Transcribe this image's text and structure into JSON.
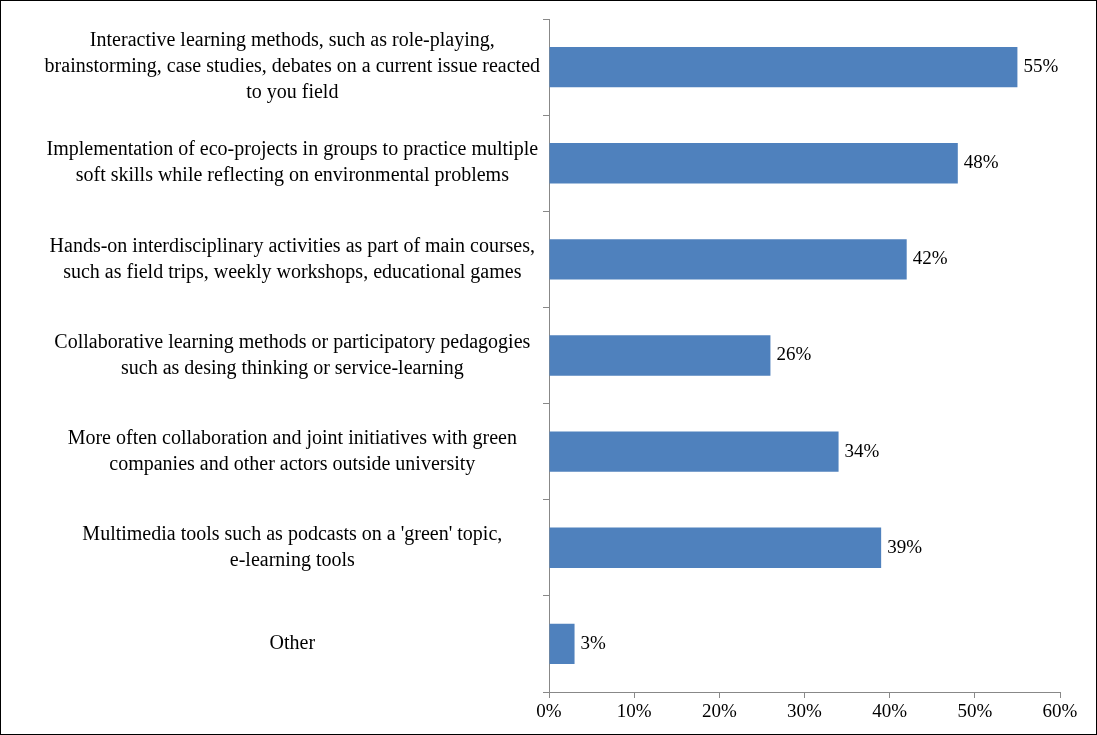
{
  "chart_data": {
    "type": "bar",
    "orientation": "horizontal",
    "categories": [
      "Interactive learning methods, such as role-playing, brainstorming, case studies, debates on a current issue reacted to you field",
      "Implementation of eco-projects in groups to practice multiple soft skills while reflecting on environmental problems",
      "Hands-on interdisciplinary activities as part of main courses, such as field trips, weekly workshops, educational games",
      "Collaborative learning methods or participatory pedagogies such as desing thinking or service-learning",
      "More often collaboration and joint initiatives with green companies and other actors outside university",
      "Multimedia tools such as podcasts on a 'green' topic, e-learning tools",
      "Other"
    ],
    "values": [
      55,
      48,
      42,
      26,
      34,
      39,
      3
    ],
    "value_labels": [
      "55%",
      "48%",
      "42%",
      "26%",
      "34%",
      "39%",
      "3%"
    ],
    "color": "#4f81bd",
    "xlim": [
      0,
      60
    ],
    "xticks": [
      {
        "value": 0,
        "label": "0%"
      },
      {
        "value": 10,
        "label": "10%"
      },
      {
        "value": 20,
        "label": "20%"
      },
      {
        "value": 30,
        "label": "30%"
      },
      {
        "value": 40,
        "label": "40%"
      },
      {
        "value": 50,
        "label": "50%"
      },
      {
        "value": 60,
        "label": "60%"
      }
    ],
    "grid": false,
    "legend": false
  }
}
